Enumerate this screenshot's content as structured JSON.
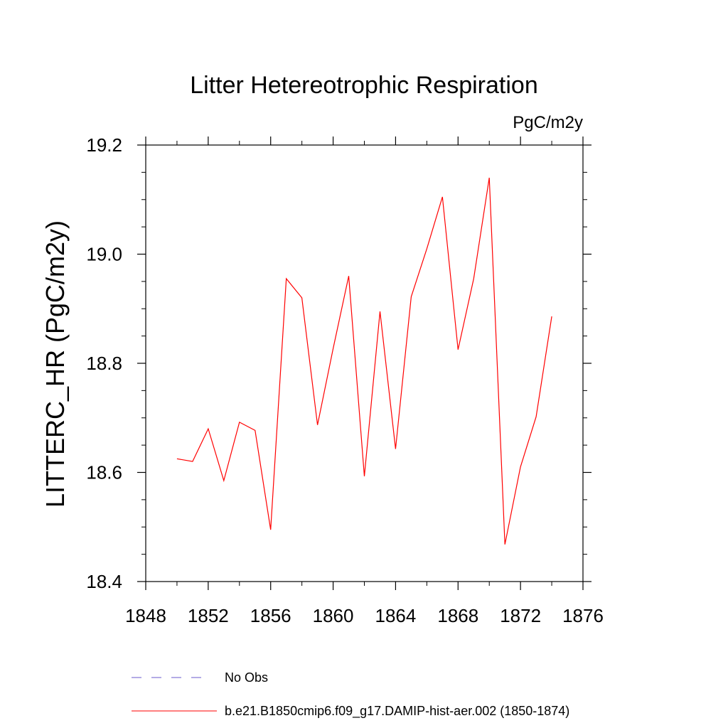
{
  "chart_data": {
    "type": "line",
    "title": "Litter Hetereotrophic Respiration",
    "units_label": "PgC/m2y",
    "ylabel": "LITTERC_HR  (PgC/m2y)",
    "xlabel": "",
    "xlim": [
      1848,
      1876
    ],
    "ylim": [
      18.4,
      19.2
    ],
    "x_ticks": [
      "1848",
      "1852",
      "1856",
      "1860",
      "1864",
      "1868",
      "1872",
      "1876"
    ],
    "y_ticks": [
      "18.4",
      "18.6",
      "18.8",
      "19.0",
      "19.2"
    ],
    "grid": false,
    "series": [
      {
        "name": "b.e21.B1850cmip6.f09_g17.DAMIP-hist-aer.002 (1850-1874)",
        "color": "#ff0000",
        "x": [
          1850,
          1851,
          1852,
          1853,
          1854,
          1855,
          1856,
          1857,
          1858,
          1859,
          1860,
          1861,
          1862,
          1863,
          1864,
          1865,
          1866,
          1867,
          1868,
          1869,
          1870,
          1871,
          1872,
          1873,
          1874
        ],
        "y": [
          18.625,
          18.62,
          18.68,
          18.585,
          18.692,
          18.677,
          18.495,
          18.955,
          18.92,
          18.687,
          18.827,
          18.96,
          18.593,
          18.895,
          18.643,
          18.922,
          19.01,
          19.105,
          18.825,
          18.955,
          19.14,
          18.468,
          18.61,
          18.702,
          18.886
        ]
      }
    ],
    "legend": {
      "placement": "bottom",
      "entries": [
        {
          "label": "No Obs",
          "color": "#6a5acd",
          "style": "dashed"
        },
        {
          "label": "b.e21.B1850cmip6.f09_g17.DAMIP-hist-aer.002 (1850-1874)",
          "color": "#ff0000",
          "style": "solid"
        }
      ]
    }
  }
}
